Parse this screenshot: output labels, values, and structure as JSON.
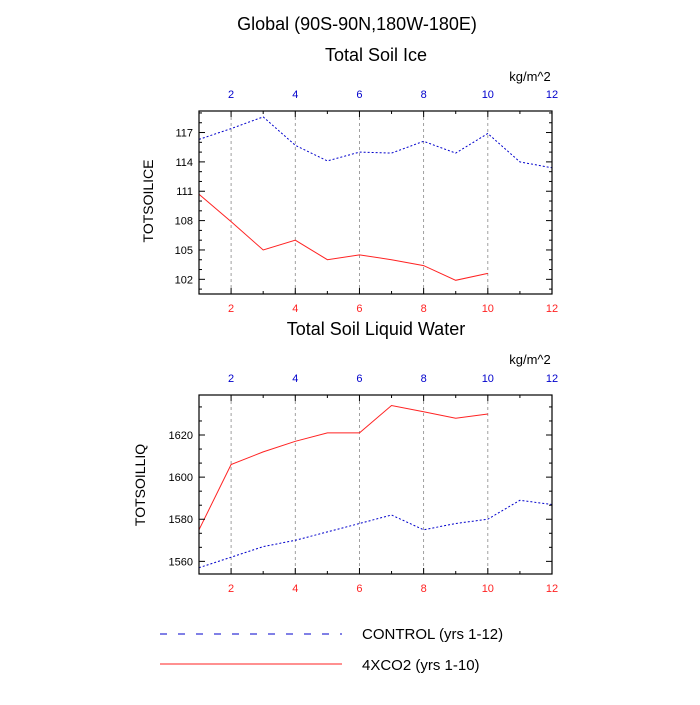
{
  "main_title": "Global (90S-90N,180W-180E)",
  "colors": {
    "control": "#0000cc",
    "co2": "#ff2222",
    "axis": "#000000",
    "grid": "#888888"
  },
  "legend": [
    {
      "label": "CONTROL (yrs 1-12)",
      "series": "control"
    },
    {
      "label": "4XCO2 (yrs 1-10)",
      "series": "co2"
    }
  ],
  "chart_data": [
    {
      "type": "line",
      "title": "Total Soil Ice",
      "ylabel": "TOTSOILICE",
      "units": "kg/m^2",
      "xlim": [
        1,
        12
      ],
      "ylim": [
        100.5,
        119.2
      ],
      "yticks": [
        102,
        105,
        108,
        111,
        114,
        117
      ],
      "xticks_top": [
        2,
        4,
        6,
        8,
        10,
        12
      ],
      "xticks_bottom": [
        2,
        4,
        6,
        8,
        10,
        12
      ],
      "grid_x": [
        2,
        4,
        6,
        8,
        10
      ],
      "series": [
        {
          "name": "CONTROL (yrs 1-12)",
          "key": "control",
          "style": "dashed",
          "x": [
            1,
            2,
            3,
            4,
            5,
            6,
            7,
            8,
            9,
            10,
            11,
            12
          ],
          "values": [
            116.3,
            117.4,
            118.6,
            115.7,
            114.1,
            115.0,
            114.9,
            116.1,
            114.9,
            116.9,
            114.0,
            113.4
          ]
        },
        {
          "name": "4XCO2 (yrs 1-10)",
          "key": "co2",
          "style": "solid",
          "x": [
            1,
            2,
            3,
            4,
            5,
            6,
            7,
            8,
            9,
            10
          ],
          "values": [
            110.7,
            107.9,
            105.0,
            106.0,
            104.0,
            104.5,
            104.0,
            103.4,
            101.9,
            102.6
          ]
        }
      ]
    },
    {
      "type": "line",
      "title": "Total Soil Liquid Water",
      "ylabel": "TOTSOILLIQ",
      "units": "kg/m^2",
      "xlim": [
        1,
        12
      ],
      "ylim": [
        1554,
        1639
      ],
      "yticks": [
        1560,
        1580,
        1600,
        1620
      ],
      "xticks_top": [
        2,
        4,
        6,
        8,
        10,
        12
      ],
      "xticks_bottom": [
        2,
        4,
        6,
        8,
        10,
        12
      ],
      "grid_x": [
        2,
        4,
        6,
        8,
        10
      ],
      "series": [
        {
          "name": "CONTROL (yrs 1-12)",
          "key": "control",
          "style": "dashed",
          "x": [
            1,
            2,
            3,
            4,
            5,
            6,
            7,
            8,
            9,
            10,
            11,
            12
          ],
          "values": [
            1557,
            1562,
            1567,
            1570,
            1574,
            1578,
            1582,
            1575,
            1578,
            1580,
            1589,
            1587
          ]
        },
        {
          "name": "4XCO2 (yrs 1-10)",
          "key": "co2",
          "style": "solid",
          "x": [
            1,
            2,
            3,
            4,
            5,
            6,
            7,
            8,
            9,
            10
          ],
          "values": [
            1575,
            1606,
            1612,
            1617,
            1621,
            1621,
            1634,
            1631,
            1628,
            1630
          ]
        }
      ]
    }
  ]
}
